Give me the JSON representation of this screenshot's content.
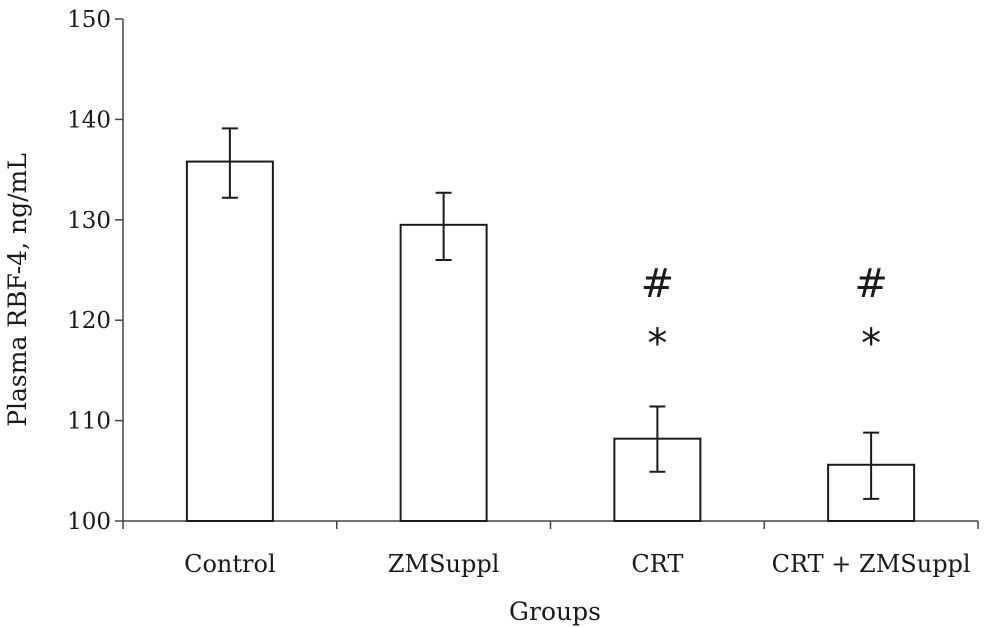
{
  "chart_data": {
    "type": "bar",
    "title": "",
    "xlabel": "Groups",
    "ylabel": "Plasma RBF-4, ng/mL",
    "ylim": [
      100,
      150
    ],
    "yticks": [
      100,
      110,
      120,
      130,
      140,
      150
    ],
    "categories": [
      "Control",
      "ZMSuppl",
      "CRT",
      "CRT + ZMSuppl"
    ],
    "values": [
      135.8,
      129.5,
      108.2,
      105.6
    ],
    "error_low": [
      132.2,
      126.0,
      104.9,
      102.2
    ],
    "error_high": [
      139.1,
      132.7,
      111.4,
      108.8
    ],
    "annotations": [
      {
        "category": "CRT",
        "symbols": [
          "#",
          "*"
        ]
      },
      {
        "category": "CRT + ZMSuppl",
        "symbols": [
          "#",
          "*"
        ]
      }
    ],
    "grid": false,
    "legend": "none"
  }
}
